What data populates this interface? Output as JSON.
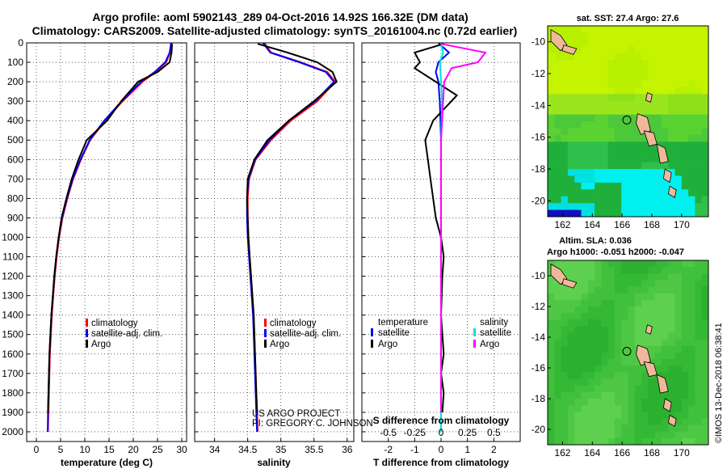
{
  "header": {
    "title_line1": "Argo profile: aoml 5902143_289 04-Oct-2016 14.92S 166.32E (DM data)",
    "title_line2": "Climatology: CARS2009. Satellite-adjusted climatology: synTS_20161004.nc (0.72d earlier)"
  },
  "colors": {
    "climatology": "#ff0000",
    "satellite": "#0000ff",
    "argo": "#000000",
    "sal_satellite": "#00e0e0",
    "sal_argo": "#ff00ff",
    "land": "#f0b89a"
  },
  "chart_data": [
    {
      "type": "line",
      "title": "",
      "xlabel": "temperature (deg C)",
      "ylabel": "",
      "xlim": [
        -2,
        31
      ],
      "ylim": [
        2050,
        0
      ],
      "xticks": [
        0,
        5,
        10,
        15,
        20,
        25,
        30
      ],
      "yticks": [
        0,
        100,
        200,
        300,
        400,
        500,
        600,
        700,
        800,
        900,
        1000,
        1100,
        1200,
        1300,
        1400,
        1500,
        1600,
        1700,
        1800,
        1900,
        2000
      ],
      "legend": [
        "climatology",
        "satellite-adj. clim.",
        "Argo"
      ],
      "series": [
        {
          "name": "climatology",
          "x": [
            27.9,
            27.6,
            26.8,
            24.6,
            21.9,
            17.8,
            14.2,
            11.1,
            9.2,
            7.6,
            6.4,
            5.4,
            4.7,
            4.2,
            3.8,
            3.5,
            3.2,
            3.0,
            2.8,
            2.7,
            2.6,
            2.5,
            2.4
          ],
          "depth": [
            0,
            50,
            100,
            150,
            200,
            300,
            400,
            500,
            600,
            700,
            800,
            900,
            1000,
            1100,
            1200,
            1300,
            1400,
            1500,
            1600,
            1700,
            1800,
            1900,
            2000
          ]
        },
        {
          "name": "satellite-adj. clim.",
          "x": [
            27.8,
            27.5,
            26.6,
            24.4,
            21.6,
            17.6,
            14.0,
            11.0,
            9.1,
            7.5,
            6.3,
            5.3,
            4.6,
            4.1,
            3.7,
            3.4,
            3.1,
            2.9,
            2.7,
            2.6,
            2.5,
            2.4,
            2.35
          ],
          "depth": [
            0,
            50,
            100,
            150,
            200,
            300,
            400,
            500,
            600,
            700,
            800,
            900,
            1000,
            1100,
            1200,
            1300,
            1400,
            1500,
            1600,
            1700,
            1800,
            1900,
            2000
          ]
        },
        {
          "name": "Argo",
          "x": [
            28.0,
            27.9,
            27.5,
            25.0,
            21.0,
            17.5,
            14.6,
            10.4,
            8.7,
            7.3,
            6.2,
            5.2,
            4.6,
            4.1,
            3.7,
            3.4,
            3.1,
            2.9,
            2.7,
            2.6,
            2.5,
            2.4
          ],
          "depth": [
            5,
            50,
            100,
            150,
            200,
            300,
            400,
            500,
            600,
            700,
            800,
            900,
            1000,
            1100,
            1200,
            1300,
            1400,
            1500,
            1600,
            1700,
            1800,
            1900
          ]
        }
      ]
    },
    {
      "type": "line",
      "title": "",
      "xlabel": "salinity",
      "ylabel": "",
      "xlim": [
        33.7,
        36.1
      ],
      "ylim": [
        2050,
        0
      ],
      "xticks": [
        34,
        34.5,
        35,
        35.5,
        36
      ],
      "legend": [
        "climatology",
        "satellite-adj. clim.",
        "Argo"
      ],
      "series": [
        {
          "name": "climatology",
          "x": [
            34.75,
            34.85,
            35.3,
            35.7,
            35.82,
            35.55,
            35.15,
            34.85,
            34.62,
            34.52,
            34.5,
            34.5,
            34.51,
            34.53,
            34.55,
            34.57,
            34.59,
            34.6,
            34.61,
            34.62,
            34.63,
            34.64,
            34.65
          ],
          "depth": [
            0,
            50,
            100,
            150,
            200,
            300,
            400,
            500,
            600,
            700,
            800,
            900,
            1000,
            1100,
            1200,
            1300,
            1400,
            1500,
            1600,
            1700,
            1800,
            1900,
            2000
          ]
        },
        {
          "name": "satellite-adj. clim.",
          "x": [
            34.73,
            34.84,
            35.28,
            35.68,
            35.8,
            35.52,
            35.12,
            34.83,
            34.61,
            34.51,
            34.49,
            34.49,
            34.5,
            34.52,
            34.54,
            34.56,
            34.58,
            34.59,
            34.6,
            34.61,
            34.62,
            34.63,
            34.64
          ],
          "depth": [
            0,
            50,
            100,
            150,
            200,
            300,
            400,
            500,
            600,
            700,
            800,
            900,
            1000,
            1100,
            1200,
            1300,
            1400,
            1500,
            1600,
            1700,
            1800,
            1900,
            2000
          ]
        },
        {
          "name": "Argo",
          "x": [
            34.65,
            35.1,
            35.55,
            35.78,
            35.84,
            35.5,
            35.12,
            34.8,
            34.6,
            34.5,
            34.49,
            34.5,
            34.51,
            34.53,
            34.55,
            34.57,
            34.59,
            34.6,
            34.61,
            34.62,
            34.63,
            34.64
          ],
          "depth": [
            5,
            50,
            100,
            150,
            200,
            300,
            400,
            500,
            600,
            700,
            800,
            900,
            1000,
            1100,
            1200,
            1300,
            1400,
            1500,
            1600,
            1700,
            1800,
            1900
          ]
        }
      ],
      "annotations": [
        "US ARGO PROJECT",
        "PI: GREGORY C. JOHNSON"
      ]
    },
    {
      "type": "line",
      "title": "",
      "xlabel": "T difference from climatology",
      "xlabel_top": "S difference from climatology",
      "ylabel": "",
      "xlim": [
        -3,
        3
      ],
      "ylim": [
        2050,
        0
      ],
      "xticks": [
        -2,
        -1,
        0,
        1,
        2
      ],
      "xticks_top": [
        -0.5,
        -0.25,
        0,
        0.25,
        0.5
      ],
      "legend_left_title": "temperature",
      "legend_right_title": "salinity",
      "legend": [
        "satellite",
        "Argo",
        "satellite",
        "Argo"
      ],
      "series": [
        {
          "name": "T satellite",
          "x": [
            -0.1,
            0.3,
            -0.1,
            -0.2,
            -0.1,
            -0.05,
            0,
            0,
            0,
            0,
            0
          ],
          "depth": [
            0,
            50,
            100,
            150,
            200,
            300,
            500,
            800,
            1200,
            1600,
            2000
          ]
        },
        {
          "name": "T Argo",
          "x": [
            0.1,
            -1.0,
            -0.8,
            -1.0,
            -0.2,
            0.6,
            -0.3,
            -0.6,
            -0.5,
            -0.4,
            -0.3,
            -0.2,
            0.0,
            0.1,
            0.05,
            0.0,
            0.05,
            0.1,
            0.0,
            0.1,
            0.05
          ],
          "depth": [
            5,
            50,
            100,
            130,
            200,
            270,
            400,
            500,
            600,
            700,
            800,
            900,
            1000,
            1100,
            1200,
            1400,
            1500,
            1600,
            1700,
            1800,
            1900
          ]
        },
        {
          "name": "S satellite",
          "x": [
            0,
            0.02,
            -0.01,
            0.0,
            0.01,
            0,
            0,
            0,
            0,
            0
          ],
          "depth": [
            0,
            50,
            100,
            200,
            300,
            500,
            800,
            1200,
            1600,
            2000
          ]
        },
        {
          "name": "S Argo",
          "x": [
            0.0,
            0.42,
            0.35,
            0.1,
            0.03,
            0.02,
            0.0,
            0.0,
            0.0,
            0.0,
            0.0
          ],
          "depth": [
            5,
            50,
            100,
            130,
            200,
            300,
            500,
            800,
            1200,
            1600,
            1900
          ]
        }
      ]
    },
    {
      "type": "heatmap",
      "title": "sat. SST: 27.4 Argo: 27.6",
      "xlabel": "",
      "ylabel": "",
      "xlim": [
        161,
        171.8
      ],
      "ylim": [
        -21,
        -9
      ],
      "xticks": [
        162,
        164,
        166,
        168,
        170
      ],
      "yticks": [
        -10,
        -12,
        -14,
        -16,
        -18,
        -20
      ]
    },
    {
      "type": "heatmap",
      "title": "Altim. SLA: 0.036",
      "subtitle": "Argo h1000: -0.051 h2000: -0.047",
      "xlabel": "",
      "ylabel": "",
      "xlim": [
        161,
        171.8
      ],
      "ylim": [
        -21,
        -9
      ],
      "xticks": [
        162,
        164,
        166,
        168,
        170
      ],
      "yticks": [
        -10,
        -12,
        -14,
        -16,
        -18,
        -20
      ]
    }
  ],
  "credit": "©IMOS 13-Dec-2018 06:38:41"
}
